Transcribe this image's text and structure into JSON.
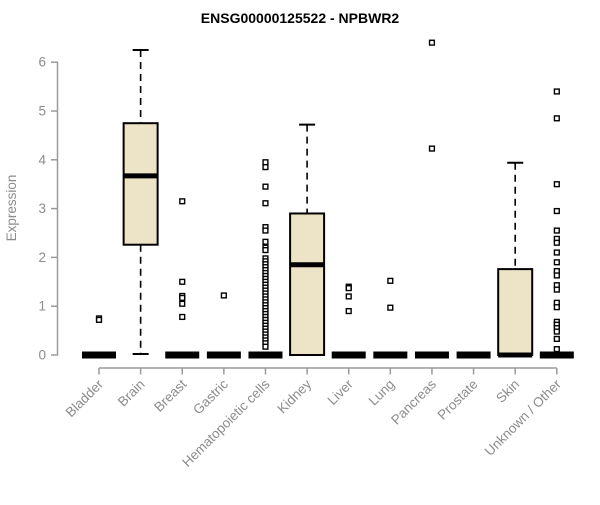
{
  "title": "ENSG00000125522 - NPBWR2",
  "chart_data": {
    "type": "boxplot",
    "title": "ENSG00000125522 - NPBWR2",
    "xlabel": "",
    "ylabel": "Expression",
    "ylim": [
      0,
      6.6
    ],
    "yticks": [
      0,
      1,
      2,
      3,
      4,
      5,
      6
    ],
    "grid": false,
    "categories": [
      "Bladder",
      "Brain",
      "Breast",
      "Gastric",
      "Hematopoietic cells",
      "Kidney",
      "Liver",
      "Lung",
      "Pancreas",
      "Prostate",
      "Skin",
      "Unknown / Other"
    ],
    "series": [
      {
        "category": "Bladder",
        "min": 0,
        "q1": 0,
        "median": 0,
        "q3": 0,
        "max": 0,
        "outliers": [
          0.75,
          0.72
        ]
      },
      {
        "category": "Brain",
        "min": 0.02,
        "q1": 2.26,
        "median": 3.67,
        "q3": 4.75,
        "max": 6.25,
        "outliers": []
      },
      {
        "category": "Breast",
        "min": 0,
        "q1": 0,
        "median": 0,
        "q3": 0,
        "max": 0,
        "outliers": [
          3.15,
          1.5,
          1.21,
          1.17,
          1.05,
          0.78
        ]
      },
      {
        "category": "Gastric",
        "min": 0,
        "q1": 0,
        "median": 0,
        "q3": 0,
        "max": 0,
        "outliers": [
          1.22
        ]
      },
      {
        "category": "Hematopoietic cells",
        "min": 0,
        "q1": 0,
        "median": 0,
        "q3": 0,
        "max": 0,
        "outliers": [
          3.95,
          3.85,
          3.45,
          3.11,
          2.62,
          2.55,
          2.32,
          2.2,
          2.15,
          1.98,
          1.92,
          1.86,
          1.8,
          1.74,
          1.68,
          1.62,
          1.56,
          1.5,
          1.44,
          1.38,
          1.32,
          1.26,
          1.2,
          1.14,
          1.08,
          1.02,
          0.96,
          0.9,
          0.84,
          0.78,
          0.72,
          0.66,
          0.6,
          0.54,
          0.48,
          0.42,
          0.36,
          0.3,
          0.24,
          0.17
        ]
      },
      {
        "category": "Kidney",
        "min": 0,
        "q1": 0,
        "median": 1.85,
        "q3": 2.9,
        "max": 4.72,
        "outliers": []
      },
      {
        "category": "Liver",
        "min": 0,
        "q1": 0,
        "median": 0,
        "q3": 0,
        "max": 0,
        "outliers": [
          1.4,
          1.37,
          1.2,
          0.9
        ]
      },
      {
        "category": "Lung",
        "min": 0,
        "q1": 0,
        "median": 0,
        "q3": 0,
        "max": 0,
        "outliers": [
          1.52,
          0.97
        ]
      },
      {
        "category": "Pancreas",
        "min": 0,
        "q1": 0,
        "median": 0,
        "q3": 0,
        "max": 0,
        "outliers": [
          6.4,
          4.23
        ]
      },
      {
        "category": "Prostate",
        "min": 0,
        "q1": 0,
        "median": 0,
        "q3": 0,
        "max": 0,
        "outliers": []
      },
      {
        "category": "Skin",
        "min": 0,
        "q1": 0,
        "median": 0,
        "q3": 1.76,
        "max": 3.94,
        "outliers": []
      },
      {
        "category": "Unknown / Other",
        "min": 0,
        "q1": 0,
        "median": 0,
        "q3": 0,
        "max": 0,
        "outliers": [
          5.4,
          4.85,
          3.5,
          2.95,
          2.55,
          2.38,
          2.3,
          2.1,
          1.9,
          1.72,
          1.63,
          1.43,
          1.34,
          1.07,
          0.98,
          0.68,
          0.62,
          0.55,
          0.48,
          0.33,
          0.12
        ]
      }
    ],
    "colors": {
      "box_fill": "#EDE4C7",
      "box_stroke": "#000000",
      "median": "#000000",
      "whisker": "#000000",
      "outlier_stroke": "#000000",
      "outlier_fill": "#ffffff",
      "axis": "#9A9A9A",
      "tick_label": "#8C8C8C",
      "title": "#000000",
      "background": "#FFFFFF"
    },
    "legend": null
  }
}
